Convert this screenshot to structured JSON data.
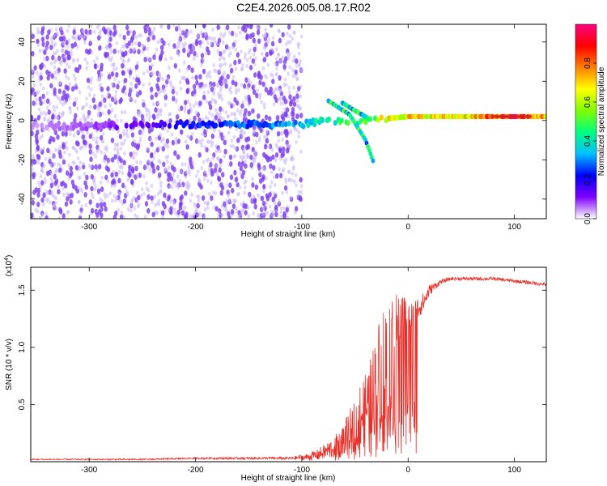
{
  "title": "C2E4.2026.005.08.17.R02",
  "colors": {
    "line": "#e8302a",
    "ridge_core": "#d62020",
    "noise": "#7a3cf0",
    "noise_faint": "#c9b6f5"
  },
  "colorbar": {
    "label": "Normalized spectral amplitude",
    "ticks": [
      "0.0",
      "0.2",
      "0.4",
      "0.6",
      "0.8"
    ],
    "tick_values": [
      0.0,
      0.2,
      0.4,
      0.6,
      0.8
    ],
    "range": [
      0,
      1
    ],
    "stops": [
      "#ffffff",
      "#7f00ff",
      "#0000ff",
      "#00bfff",
      "#00ff80",
      "#80ff00",
      "#ffff00",
      "#ff8000",
      "#ff0000",
      "#ff0080"
    ]
  },
  "chart_data": [
    {
      "type": "heatmap",
      "name": "spectrogram",
      "xlabel": "Height of straight line (km)",
      "ylabel": "Frequency (Hz)",
      "xlim": [
        -355,
        130
      ],
      "ylim": [
        -50,
        49
      ],
      "xticks": [
        -300,
        -200,
        -100,
        0,
        100
      ],
      "xtick_labels": [
        "-300",
        "-200",
        "-100",
        "0",
        "100"
      ],
      "yticks": [
        -40,
        -20,
        0,
        20,
        40
      ],
      "ytick_labels": [
        "-40",
        "-20",
        "0",
        "20",
        "40"
      ],
      "noise_region_x": [
        -355,
        -100
      ],
      "ridge": {
        "x": [
          -350,
          -300,
          -250,
          -200,
          -150,
          -100,
          -80,
          -60,
          -40,
          -20,
          0,
          20,
          60,
          100,
          130
        ],
        "freq": [
          -3,
          -3,
          -2,
          -2,
          -2,
          -2,
          0,
          -1,
          0,
          1,
          2,
          2,
          2,
          2,
          2
        ],
        "amplitude": [
          0.05,
          0.08,
          0.15,
          0.25,
          0.3,
          0.35,
          0.45,
          0.5,
          0.55,
          0.7,
          0.75,
          0.7,
          0.75,
          0.95,
          0.75
        ]
      },
      "branches": [
        {
          "x": [
            -75,
            -55,
            -40,
            -32
          ],
          "freq": [
            10,
            3,
            -10,
            -22
          ]
        },
        {
          "x": [
            -62,
            -50,
            -40
          ],
          "freq": [
            9,
            5,
            2
          ]
        }
      ]
    },
    {
      "type": "line",
      "name": "snr",
      "xlabel": "Height of straight line (km)",
      "ylabel": "SNR (10 * v/v)",
      "multiplier_label": "(x10",
      "multiplier_exponent": "4",
      "multiplier_close": ")",
      "xlim": [
        -355,
        130
      ],
      "ylim": [
        0,
        1.7
      ],
      "xticks": [
        -300,
        -200,
        -100,
        0,
        100
      ],
      "xtick_labels": [
        "-300",
        "-200",
        "-100",
        "0",
        "100"
      ],
      "yticks": [
        0.5,
        1.0,
        1.5
      ],
      "ytick_labels": [
        "0.5",
        "1.0",
        "1.5"
      ],
      "series": [
        {
          "name": "SNR",
          "x": [
            -355,
            -300,
            -250,
            -200,
            -150,
            -110,
            -95,
            -85,
            -75,
            -65,
            -55,
            -45,
            -35,
            -30,
            -25,
            -20,
            -15,
            -10,
            -5,
            0,
            5,
            10,
            15,
            20,
            30,
            40,
            60,
            80,
            100,
            120,
            130
          ],
          "y": [
            0.02,
            0.02,
            0.02,
            0.03,
            0.03,
            0.03,
            0.04,
            0.06,
            0.1,
            0.15,
            0.25,
            0.4,
            0.55,
            0.7,
            0.85,
            0.95,
            1.05,
            1.15,
            1.2,
            1.25,
            1.3,
            1.35,
            1.4,
            1.5,
            1.57,
            1.6,
            1.6,
            1.6,
            1.58,
            1.56,
            1.55
          ],
          "spread": [
            0.005,
            0.005,
            0.006,
            0.008,
            0.01,
            0.012,
            0.03,
            0.05,
            0.08,
            0.12,
            0.2,
            0.3,
            0.38,
            0.45,
            0.5,
            0.55,
            0.45,
            0.35,
            0.25,
            0.15,
            0.12,
            0.1,
            0.08,
            0.05,
            0.02,
            0.015,
            0.015,
            0.015,
            0.015,
            0.015,
            0.015
          ]
        }
      ]
    }
  ]
}
